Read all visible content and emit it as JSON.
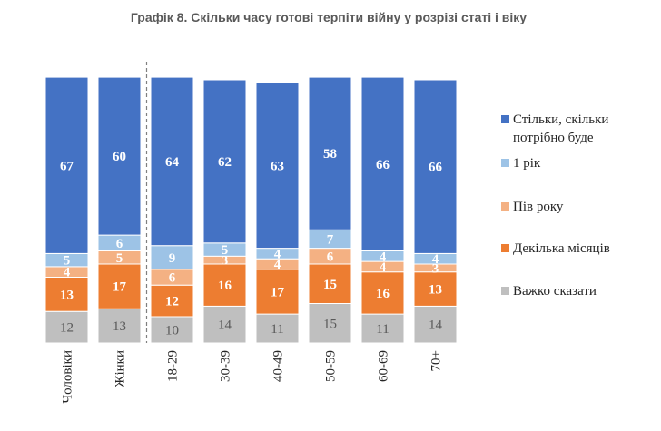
{
  "chart_data": {
    "type": "stacked-bar",
    "title": "Графік 8. Скільки часу готові терпіти війну у розрізі статі і віку",
    "categories": [
      "Чоловіки",
      "Жінки",
      "18-29",
      "30-39",
      "40-49",
      "50-59",
      "60-69",
      "70+"
    ],
    "divider_after_category": "Жінки",
    "ylim": [
      0,
      100
    ],
    "series": [
      {
        "name": "Важко сказати",
        "color": "#BFBFBF",
        "label_color": "#595959",
        "values": [
          12,
          13,
          10,
          14,
          11,
          15,
          11,
          14
        ]
      },
      {
        "name": "Декілька місяців",
        "color": "#ED7D31",
        "label_color": "#ffffff",
        "values": [
          13,
          17,
          12,
          16,
          17,
          15,
          16,
          13
        ]
      },
      {
        "name": "Пів року",
        "color": "#F4B183",
        "label_color": "#ffffff",
        "values": [
          4,
          5,
          6,
          3,
          4,
          6,
          4,
          3
        ]
      },
      {
        "name": "1 рік",
        "color": "#9DC3E6",
        "label_color": "#ffffff",
        "values": [
          5,
          6,
          9,
          5,
          4,
          7,
          4,
          4
        ]
      },
      {
        "name": "Стільки, скільки потрібно буде",
        "color": "#4472C4",
        "label_color": "#ffffff",
        "values": [
          67,
          60,
          64,
          62,
          63,
          58,
          66,
          66
        ]
      }
    ],
    "legend": {
      "position": "right",
      "order": [
        "Стільки, скільки потрібно буде",
        "1 рік",
        "Пів року",
        "Декілька місяців",
        "Важко сказати"
      ],
      "lines": {
        "Стільки, скільки потрібно буде": [
          "Стільки, скільки",
          "потрібно буде"
        ]
      }
    }
  }
}
